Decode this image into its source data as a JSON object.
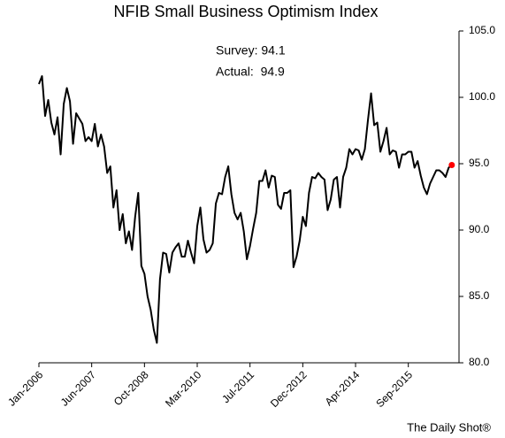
{
  "chart_data": {
    "type": "line",
    "title": "NFIB Small Business Optimism Index",
    "annotations": [
      "Survey: 94.1",
      "Actual:  94.9"
    ],
    "source": "The Daily Shot®",
    "categories": [
      "Jan-2006",
      null,
      null,
      null,
      null,
      null,
      null,
      null,
      null,
      null,
      null,
      null,
      null,
      null,
      null,
      null,
      null,
      "Jun-2007",
      null,
      null,
      null,
      null,
      null,
      null,
      null,
      null,
      null,
      null,
      null,
      null,
      null,
      null,
      null,
      null,
      "Oct-2008",
      null,
      null,
      null,
      null,
      null,
      null,
      null,
      null,
      null,
      null,
      null,
      null,
      null,
      null,
      null,
      null,
      "Mar-2010",
      null,
      null,
      null,
      null,
      null,
      null,
      null,
      null,
      null,
      null,
      null,
      null,
      null,
      null,
      null,
      null,
      "Jul-2011",
      null,
      null,
      null,
      null,
      null,
      null,
      null,
      null,
      null,
      null,
      null,
      null,
      null,
      null,
      null,
      null,
      "Dec-2012",
      null,
      null,
      null,
      null,
      null,
      null,
      null,
      null,
      null,
      null,
      null,
      null,
      null,
      null,
      null,
      null,
      "Apr-2014",
      null,
      null,
      null,
      null,
      null,
      null,
      null,
      null,
      null,
      null,
      null,
      null,
      null,
      null,
      null,
      null,
      "Sep-2015",
      null,
      null,
      null,
      null,
      null,
      null,
      null,
      null,
      null,
      null,
      null,
      null,
      null,
      null
    ],
    "values": [
      101.0,
      101.6,
      98.6,
      99.8,
      98.1,
      97.2,
      98.5,
      95.7,
      99.5,
      100.7,
      99.7,
      96.5,
      98.8,
      98.4,
      98.0,
      96.7,
      97.0,
      96.7,
      98.0,
      96.3,
      97.2,
      96.3,
      94.3,
      94.8,
      91.7,
      93.0,
      90.0,
      91.2,
      89.0,
      89.9,
      88.5,
      91.0,
      92.8,
      87.3,
      86.7,
      85.0,
      84.0,
      82.5,
      81.5,
      86.3,
      88.3,
      88.2,
      86.8,
      88.3,
      88.7,
      89.0,
      88.0,
      88.0,
      89.2,
      88.3,
      87.5,
      90.3,
      91.7,
      89.3,
      88.3,
      88.5,
      89.0,
      92.0,
      92.8,
      92.7,
      94.0,
      94.8,
      92.7,
      91.3,
      90.8,
      91.3,
      89.9,
      87.8,
      88.8,
      90.1,
      91.3,
      93.7,
      93.7,
      94.5,
      93.2,
      94.1,
      94.0,
      91.9,
      91.6,
      92.8,
      92.8,
      93.0,
      87.2,
      88.0,
      89.2,
      91.0,
      90.3,
      92.8,
      94.0,
      93.9,
      94.3,
      94.0,
      93.8,
      91.5,
      92.3,
      93.8,
      94.0,
      91.7,
      94.0,
      94.7,
      96.1,
      95.7,
      96.1,
      96.0,
      95.3,
      96.1,
      98.3,
      100.3,
      97.9,
      98.1,
      95.9,
      96.7,
      97.7,
      95.7,
      96.0,
      95.9,
      94.7,
      95.7,
      95.7,
      95.9,
      95.9,
      94.7,
      95.2,
      94.1,
      93.2,
      92.7,
      93.5,
      94.0,
      94.5,
      94.5,
      94.3,
      94.0,
      94.7,
      94.9
    ],
    "color": "#000000",
    "marker_color": "#ff0000",
    "ylim": [
      80,
      105
    ],
    "yticks": [
      {
        "value": 80,
        "label": "80.0"
      },
      {
        "value": 85,
        "label": "85.0"
      },
      {
        "value": 90,
        "label": "90.0"
      },
      {
        "value": 95,
        "label": "95.0"
      },
      {
        "value": 100,
        "label": "100.0"
      },
      {
        "value": 105,
        "label": "105.0"
      }
    ],
    "y_axis_side": "right",
    "grid": false
  }
}
